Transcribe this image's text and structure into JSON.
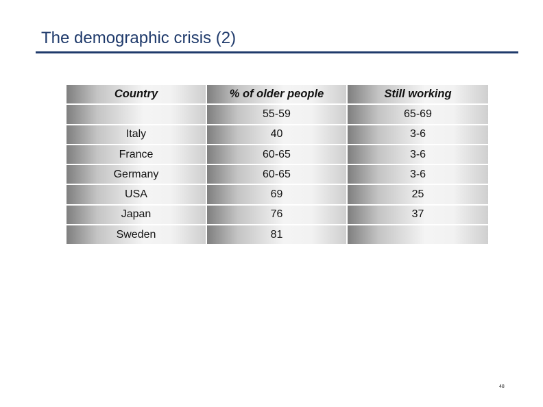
{
  "slide": {
    "title": "The demographic crisis (2)",
    "page_number": "48"
  },
  "table": {
    "headers": [
      "Country",
      "% of older people",
      "Still working"
    ],
    "subheaders": [
      "",
      "55-59",
      "65-69"
    ],
    "rows": [
      [
        "Italy",
        "40",
        "3-6"
      ],
      [
        "France",
        "60-65",
        "3-6"
      ],
      [
        "Germany",
        "60-65",
        "3-6"
      ],
      [
        "USA",
        "69",
        "25"
      ],
      [
        "Japan",
        "76",
        "37"
      ],
      [
        "Sweden",
        "81",
        ""
      ]
    ]
  },
  "colors": {
    "title": "#1f3a6b",
    "rule": "#1f3a6b"
  }
}
